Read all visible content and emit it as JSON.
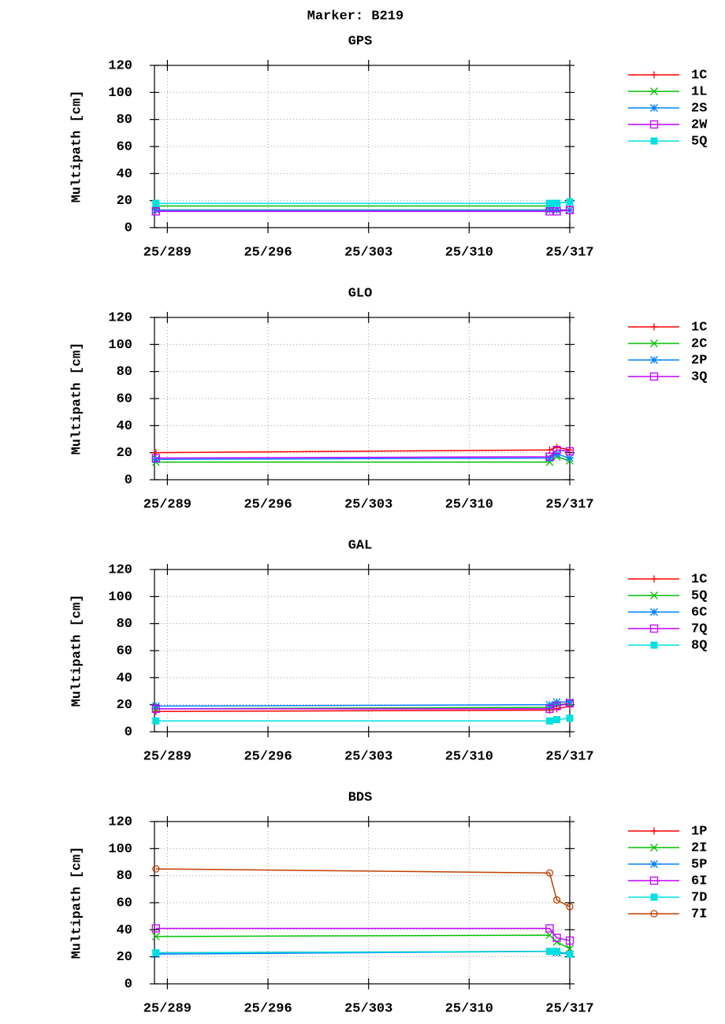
{
  "title": "Marker: B219",
  "chart_data": [
    {
      "type": "line",
      "title": "GPS",
      "ylabel": "Multipath [cm]",
      "grid": true,
      "legend": "outside-right",
      "x": [
        288.2,
        315.6,
        316.1,
        317
      ],
      "xlim": [
        288.1,
        317
      ],
      "ylim": [
        0,
        120
      ],
      "xticks": [
        {
          "value": 289,
          "label": "25/289"
        },
        {
          "value": 296,
          "label": "25/296"
        },
        {
          "value": 303,
          "label": "25/303"
        },
        {
          "value": 310,
          "label": "25/310"
        },
        {
          "value": 317,
          "label": "25/317"
        }
      ],
      "yticks": [
        0,
        20,
        40,
        60,
        80,
        100,
        120
      ],
      "series": [
        {
          "name": "1C",
          "color": "#ff0000",
          "marker": "plus",
          "values": [
            13,
            13,
            13,
            13
          ]
        },
        {
          "name": "1L",
          "color": "#00c000",
          "marker": "cross",
          "values": [
            16,
            16,
            18,
            19
          ]
        },
        {
          "name": "2S",
          "color": "#0080ff",
          "marker": "star",
          "values": [
            13,
            13,
            13,
            13
          ]
        },
        {
          "name": "2W",
          "color": "#c000ff",
          "marker": "square",
          "values": [
            12,
            12,
            12,
            13
          ]
        },
        {
          "name": "5Q",
          "color": "#00e0e0",
          "marker": "filled-square",
          "values": [
            18,
            18,
            18,
            19
          ]
        }
      ]
    },
    {
      "type": "line",
      "title": "GLO",
      "ylabel": "Multipath [cm]",
      "grid": true,
      "legend": "outside-right",
      "x": [
        288.2,
        315.6,
        316.1,
        317
      ],
      "xlim": [
        288.1,
        317
      ],
      "ylim": [
        0,
        120
      ],
      "xticks": [
        {
          "value": 289,
          "label": "25/289"
        },
        {
          "value": 296,
          "label": "25/296"
        },
        {
          "value": 303,
          "label": "25/303"
        },
        {
          "value": 310,
          "label": "25/310"
        },
        {
          "value": 317,
          "label": "25/317"
        }
      ],
      "yticks": [
        0,
        20,
        40,
        60,
        80,
        100,
        120
      ],
      "series": [
        {
          "name": "1C",
          "color": "#ff0000",
          "marker": "plus",
          "values": [
            20,
            22,
            24,
            22
          ]
        },
        {
          "name": "2C",
          "color": "#00c000",
          "marker": "cross",
          "values": [
            13,
            13,
            17,
            14
          ]
        },
        {
          "name": "2P",
          "color": "#0080ff",
          "marker": "star",
          "values": [
            15,
            16,
            19,
            16
          ]
        },
        {
          "name": "3Q",
          "color": "#c000ff",
          "marker": "square",
          "values": [
            16,
            17,
            22,
            21
          ]
        }
      ]
    },
    {
      "type": "line",
      "title": "GAL",
      "ylabel": "Multipath [cm]",
      "grid": true,
      "legend": "outside-right",
      "x": [
        288.2,
        315.6,
        316.1,
        317
      ],
      "xlim": [
        288.1,
        317
      ],
      "ylim": [
        0,
        120
      ],
      "xticks": [
        {
          "value": 289,
          "label": "25/289"
        },
        {
          "value": 296,
          "label": "25/296"
        },
        {
          "value": 303,
          "label": "25/303"
        },
        {
          "value": 310,
          "label": "25/310"
        },
        {
          "value": 317,
          "label": "25/317"
        }
      ],
      "yticks": [
        0,
        20,
        40,
        60,
        80,
        100,
        120
      ],
      "series": [
        {
          "name": "1C",
          "color": "#ff0000",
          "marker": "plus",
          "values": [
            15,
            16,
            17,
            19
          ]
        },
        {
          "name": "5Q",
          "color": "#00c000",
          "marker": "cross",
          "values": [
            17,
            18,
            20,
            21
          ]
        },
        {
          "name": "6C",
          "color": "#0080ff",
          "marker": "star",
          "values": [
            19,
            20,
            22,
            22
          ]
        },
        {
          "name": "7Q",
          "color": "#c000ff",
          "marker": "square",
          "values": [
            17,
            17,
            19,
            21
          ]
        },
        {
          "name": "8Q",
          "color": "#00e0e0",
          "marker": "filled-square",
          "values": [
            8,
            8,
            9,
            10
          ]
        }
      ]
    },
    {
      "type": "line",
      "title": "BDS",
      "ylabel": "Multipath [cm]",
      "grid": true,
      "legend": "outside-right",
      "x": [
        288.2,
        315.6,
        316.1,
        317
      ],
      "xlim": [
        288.1,
        317
      ],
      "ylim": [
        0,
        120
      ],
      "xticks": [
        {
          "value": 289,
          "label": "25/289"
        },
        {
          "value": 296,
          "label": "25/296"
        },
        {
          "value": 303,
          "label": "25/303"
        },
        {
          "value": 310,
          "label": "25/310"
        },
        {
          "value": 317,
          "label": "25/317"
        }
      ],
      "yticks": [
        0,
        20,
        40,
        60,
        80,
        100,
        120
      ],
      "series": [
        {
          "name": "1P",
          "color": "#ff0000",
          "marker": "plus",
          "values": [
            23,
            24,
            23,
            23
          ]
        },
        {
          "name": "2I",
          "color": "#00c000",
          "marker": "cross",
          "values": [
            35,
            36,
            31,
            26
          ]
        },
        {
          "name": "5P",
          "color": "#0080ff",
          "marker": "star",
          "values": [
            22,
            24,
            23,
            22
          ]
        },
        {
          "name": "6I",
          "color": "#c000ff",
          "marker": "square",
          "values": [
            41,
            41,
            34,
            32
          ]
        },
        {
          "name": "7D",
          "color": "#00e0e0",
          "marker": "filled-square",
          "values": [
            23,
            24,
            24,
            22
          ]
        },
        {
          "name": "7I",
          "color": "#c04000",
          "marker": "circle",
          "values": [
            85,
            82,
            62,
            57
          ]
        }
      ]
    }
  ]
}
